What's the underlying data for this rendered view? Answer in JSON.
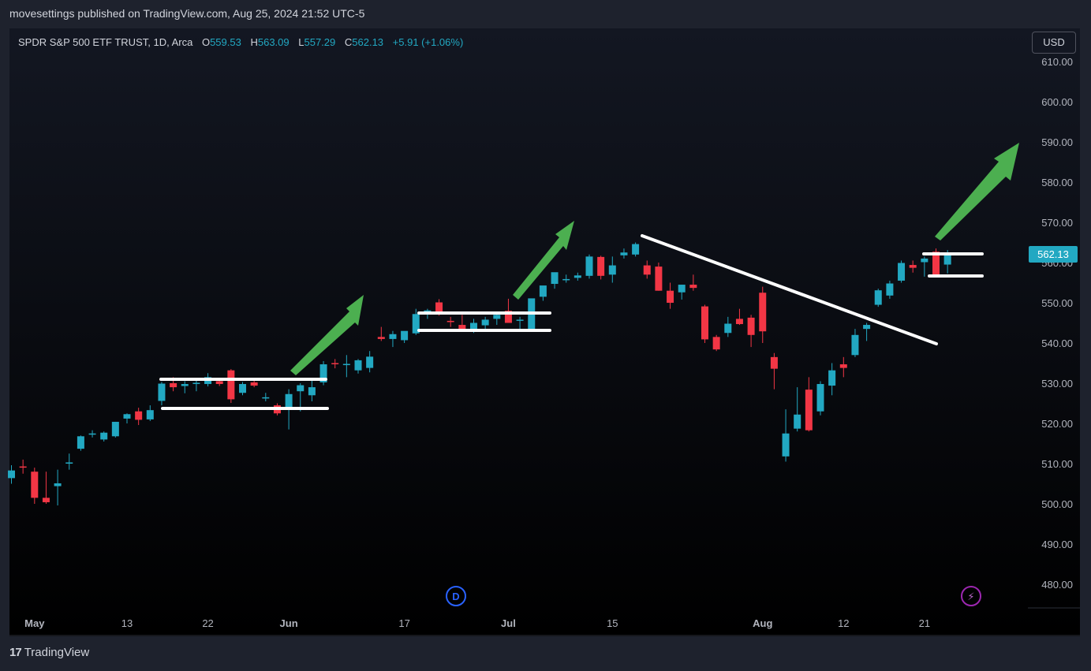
{
  "header": {
    "publisher_line": "movesettings published on TradingView.com, Aug 25, 2024 21:52 UTC-5"
  },
  "legend": {
    "symbol": "SPDR S&P 500 ETF TRUST, 1D, Arca",
    "o_label": "O",
    "o_value": "559.53",
    "h_label": "H",
    "h_value": "563.09",
    "l_label": "L",
    "l_value": "557.29",
    "c_label": "C",
    "c_value": "562.13",
    "change": "+5.91 (+1.06%)"
  },
  "currency_button": "USD",
  "footer": {
    "brand": "TradingView",
    "logo_mark": "17"
  },
  "markers": {
    "dividend": "D",
    "event": "⚡"
  },
  "colors": {
    "up": "#22a8c2",
    "down": "#f23645",
    "arrow": "#4caf50",
    "line": "#ffffff",
    "price_tag": "#22a8c2"
  },
  "chart_data": {
    "type": "candlestick",
    "y_ticks": [
      "480.00",
      "490.00",
      "500.00",
      "510.00",
      "520.00",
      "530.00",
      "540.00",
      "550.00",
      "560.00",
      "570.00",
      "580.00",
      "590.00",
      "600.00",
      "610.00"
    ],
    "ylim": [
      474,
      613
    ],
    "x_ticks": [
      {
        "label": "May",
        "i": 2
      },
      {
        "label": "13",
        "i": 10
      },
      {
        "label": "22",
        "i": 17
      },
      {
        "label": "Jun",
        "i": 24
      },
      {
        "label": "17",
        "i": 34
      },
      {
        "label": "Jul",
        "i": 43
      },
      {
        "label": "15",
        "i": 52
      },
      {
        "label": "Aug",
        "i": 65
      },
      {
        "label": "12",
        "i": 72
      },
      {
        "label": "21",
        "i": 79
      }
    ],
    "last_price": "562.13",
    "candles": [
      {
        "o": 506.4,
        "h": 509.6,
        "l": 505.0,
        "c": 508.3
      },
      {
        "o": 509.3,
        "h": 511.0,
        "l": 507.5,
        "c": 509.0
      },
      {
        "o": 508.0,
        "h": 509.0,
        "l": 500.0,
        "c": 501.5
      },
      {
        "o": 501.5,
        "h": 508.0,
        "l": 500.0,
        "c": 500.4
      },
      {
        "o": 504.4,
        "h": 508.5,
        "l": 499.6,
        "c": 505.1
      },
      {
        "o": 510.0,
        "h": 512.5,
        "l": 508.5,
        "c": 510.3
      },
      {
        "o": 513.7,
        "h": 517.0,
        "l": 513.2,
        "c": 516.8
      },
      {
        "o": 517.3,
        "h": 518.3,
        "l": 516.5,
        "c": 517.5
      },
      {
        "o": 516.0,
        "h": 518.0,
        "l": 515.5,
        "c": 517.7
      },
      {
        "o": 516.8,
        "h": 520.4,
        "l": 516.5,
        "c": 520.4
      },
      {
        "o": 521.2,
        "h": 522.5,
        "l": 520.0,
        "c": 522.3
      },
      {
        "o": 523.0,
        "h": 523.9,
        "l": 519.6,
        "c": 520.9
      },
      {
        "o": 521.0,
        "h": 524.5,
        "l": 520.6,
        "c": 523.3
      },
      {
        "o": 525.6,
        "h": 530.3,
        "l": 524.5,
        "c": 529.9
      },
      {
        "o": 530.0,
        "h": 531.5,
        "l": 528.0,
        "c": 529.0
      },
      {
        "o": 529.3,
        "h": 530.5,
        "l": 527.5,
        "c": 529.8
      },
      {
        "o": 529.8,
        "h": 531.3,
        "l": 528.0,
        "c": 530.1
      },
      {
        "o": 529.8,
        "h": 532.5,
        "l": 529.2,
        "c": 531.5
      },
      {
        "o": 530.5,
        "h": 531.3,
        "l": 529.3,
        "c": 529.8
      },
      {
        "o": 533.2,
        "h": 533.5,
        "l": 525.1,
        "c": 526.0
      },
      {
        "o": 527.6,
        "h": 530.3,
        "l": 527.0,
        "c": 529.8
      },
      {
        "o": 530.2,
        "h": 531.0,
        "l": 529.0,
        "c": 529.4
      },
      {
        "o": 526.2,
        "h": 527.6,
        "l": 525.5,
        "c": 526.5
      },
      {
        "o": 524.5,
        "h": 525.0,
        "l": 522.0,
        "c": 522.5
      },
      {
        "o": 523.8,
        "h": 528.5,
        "l": 518.5,
        "c": 527.3
      },
      {
        "o": 528.0,
        "h": 530.0,
        "l": 523.0,
        "c": 529.5
      },
      {
        "o": 527.0,
        "h": 531.0,
        "l": 525.5,
        "c": 529.0
      },
      {
        "o": 530.2,
        "h": 535.5,
        "l": 529.5,
        "c": 534.7
      },
      {
        "o": 535.0,
        "h": 536.0,
        "l": 533.7,
        "c": 534.9
      },
      {
        "o": 534.5,
        "h": 537.0,
        "l": 531.5,
        "c": 534.8
      },
      {
        "o": 533.2,
        "h": 536.0,
        "l": 532.4,
        "c": 535.7
      },
      {
        "o": 533.8,
        "h": 538.0,
        "l": 532.7,
        "c": 536.6
      },
      {
        "o": 541.5,
        "h": 544.0,
        "l": 540.5,
        "c": 541.0
      },
      {
        "o": 541.0,
        "h": 543.0,
        "l": 539.0,
        "c": 542.2
      },
      {
        "o": 540.7,
        "h": 542.5,
        "l": 540.0,
        "c": 543.0
      },
      {
        "o": 542.4,
        "h": 548.5,
        "l": 542.0,
        "c": 547.2
      },
      {
        "o": 547.3,
        "h": 548.5,
        "l": 546.0,
        "c": 548.1
      },
      {
        "o": 550.1,
        "h": 550.9,
        "l": 546.8,
        "c": 547.5
      },
      {
        "o": 545.5,
        "h": 546.5,
        "l": 544.0,
        "c": 545.2
      },
      {
        "o": 544.5,
        "h": 547.0,
        "l": 542.8,
        "c": 543.5
      },
      {
        "o": 543.5,
        "h": 546.0,
        "l": 542.5,
        "c": 545.0
      },
      {
        "o": 544.4,
        "h": 546.5,
        "l": 543.5,
        "c": 545.8
      },
      {
        "o": 546.0,
        "h": 547.5,
        "l": 544.5,
        "c": 547.0
      },
      {
        "o": 548.0,
        "h": 551.0,
        "l": 545.0,
        "c": 545.0
      },
      {
        "o": 545.7,
        "h": 546.5,
        "l": 543.5,
        "c": 545.8
      },
      {
        "o": 543.5,
        "h": 550.0,
        "l": 543.0,
        "c": 551.1
      },
      {
        "o": 551.5,
        "h": 553.5,
        "l": 550.5,
        "c": 554.3
      },
      {
        "o": 554.7,
        "h": 557.5,
        "l": 553.5,
        "c": 557.6
      },
      {
        "o": 555.6,
        "h": 557.0,
        "l": 555.0,
        "c": 555.9
      },
      {
        "o": 556.2,
        "h": 557.5,
        "l": 555.5,
        "c": 556.8
      },
      {
        "o": 556.7,
        "h": 562.0,
        "l": 556.0,
        "c": 561.5
      },
      {
        "o": 561.4,
        "h": 561.7,
        "l": 555.8,
        "c": 556.7
      },
      {
        "o": 557.0,
        "h": 561.5,
        "l": 555.0,
        "c": 559.3
      },
      {
        "o": 561.8,
        "h": 563.5,
        "l": 561.0,
        "c": 562.5
      },
      {
        "o": 562.0,
        "h": 565.0,
        "l": 561.5,
        "c": 564.6
      },
      {
        "o": 559.3,
        "h": 560.5,
        "l": 556.0,
        "c": 557.0
      },
      {
        "o": 559.0,
        "h": 560.0,
        "l": 553.0,
        "c": 553.0
      },
      {
        "o": 553.0,
        "h": 555.0,
        "l": 548.5,
        "c": 550.0
      },
      {
        "o": 552.6,
        "h": 554.5,
        "l": 550.8,
        "c": 554.5
      },
      {
        "o": 554.5,
        "h": 557.0,
        "l": 553.0,
        "c": 553.7
      },
      {
        "o": 549.1,
        "h": 549.5,
        "l": 540.0,
        "c": 540.9
      },
      {
        "o": 541.5,
        "h": 542.0,
        "l": 538.0,
        "c": 538.4
      },
      {
        "o": 542.5,
        "h": 546.5,
        "l": 541.5,
        "c": 544.8
      },
      {
        "o": 546.0,
        "h": 548.5,
        "l": 544.5,
        "c": 544.7
      },
      {
        "o": 546.3,
        "h": 547.0,
        "l": 539.0,
        "c": 542.0
      },
      {
        "o": 552.5,
        "h": 554.0,
        "l": 540.0,
        "c": 542.9
      },
      {
        "o": 536.5,
        "h": 537.5,
        "l": 528.5,
        "c": 533.6
      },
      {
        "o": 511.8,
        "h": 523.5,
        "l": 510.5,
        "c": 517.5
      },
      {
        "o": 518.7,
        "h": 529.0,
        "l": 518.0,
        "c": 522.2
      },
      {
        "o": 528.4,
        "h": 531.5,
        "l": 518.0,
        "c": 518.3
      },
      {
        "o": 523.0,
        "h": 530.5,
        "l": 522.0,
        "c": 529.8
      },
      {
        "o": 529.4,
        "h": 535.0,
        "l": 527.0,
        "c": 533.2
      },
      {
        "o": 534.7,
        "h": 536.5,
        "l": 531.5,
        "c": 533.8
      },
      {
        "o": 537.0,
        "h": 543.5,
        "l": 536.5,
        "c": 542.0
      },
      {
        "o": 543.5,
        "h": 545.0,
        "l": 540.5,
        "c": 544.5
      },
      {
        "o": 549.5,
        "h": 553.5,
        "l": 549.0,
        "c": 553.1
      },
      {
        "o": 551.8,
        "h": 555.5,
        "l": 551.0,
        "c": 554.8
      },
      {
        "o": 555.5,
        "h": 560.5,
        "l": 555.0,
        "c": 559.9
      },
      {
        "o": 559.4,
        "h": 560.5,
        "l": 557.5,
        "c": 558.7
      },
      {
        "o": 560.1,
        "h": 561.5,
        "l": 556.5,
        "c": 561.0
      },
      {
        "o": 562.7,
        "h": 563.5,
        "l": 556.5,
        "c": 556.9
      },
      {
        "o": 559.5,
        "h": 563.1,
        "l": 557.3,
        "c": 562.1
      }
    ]
  }
}
